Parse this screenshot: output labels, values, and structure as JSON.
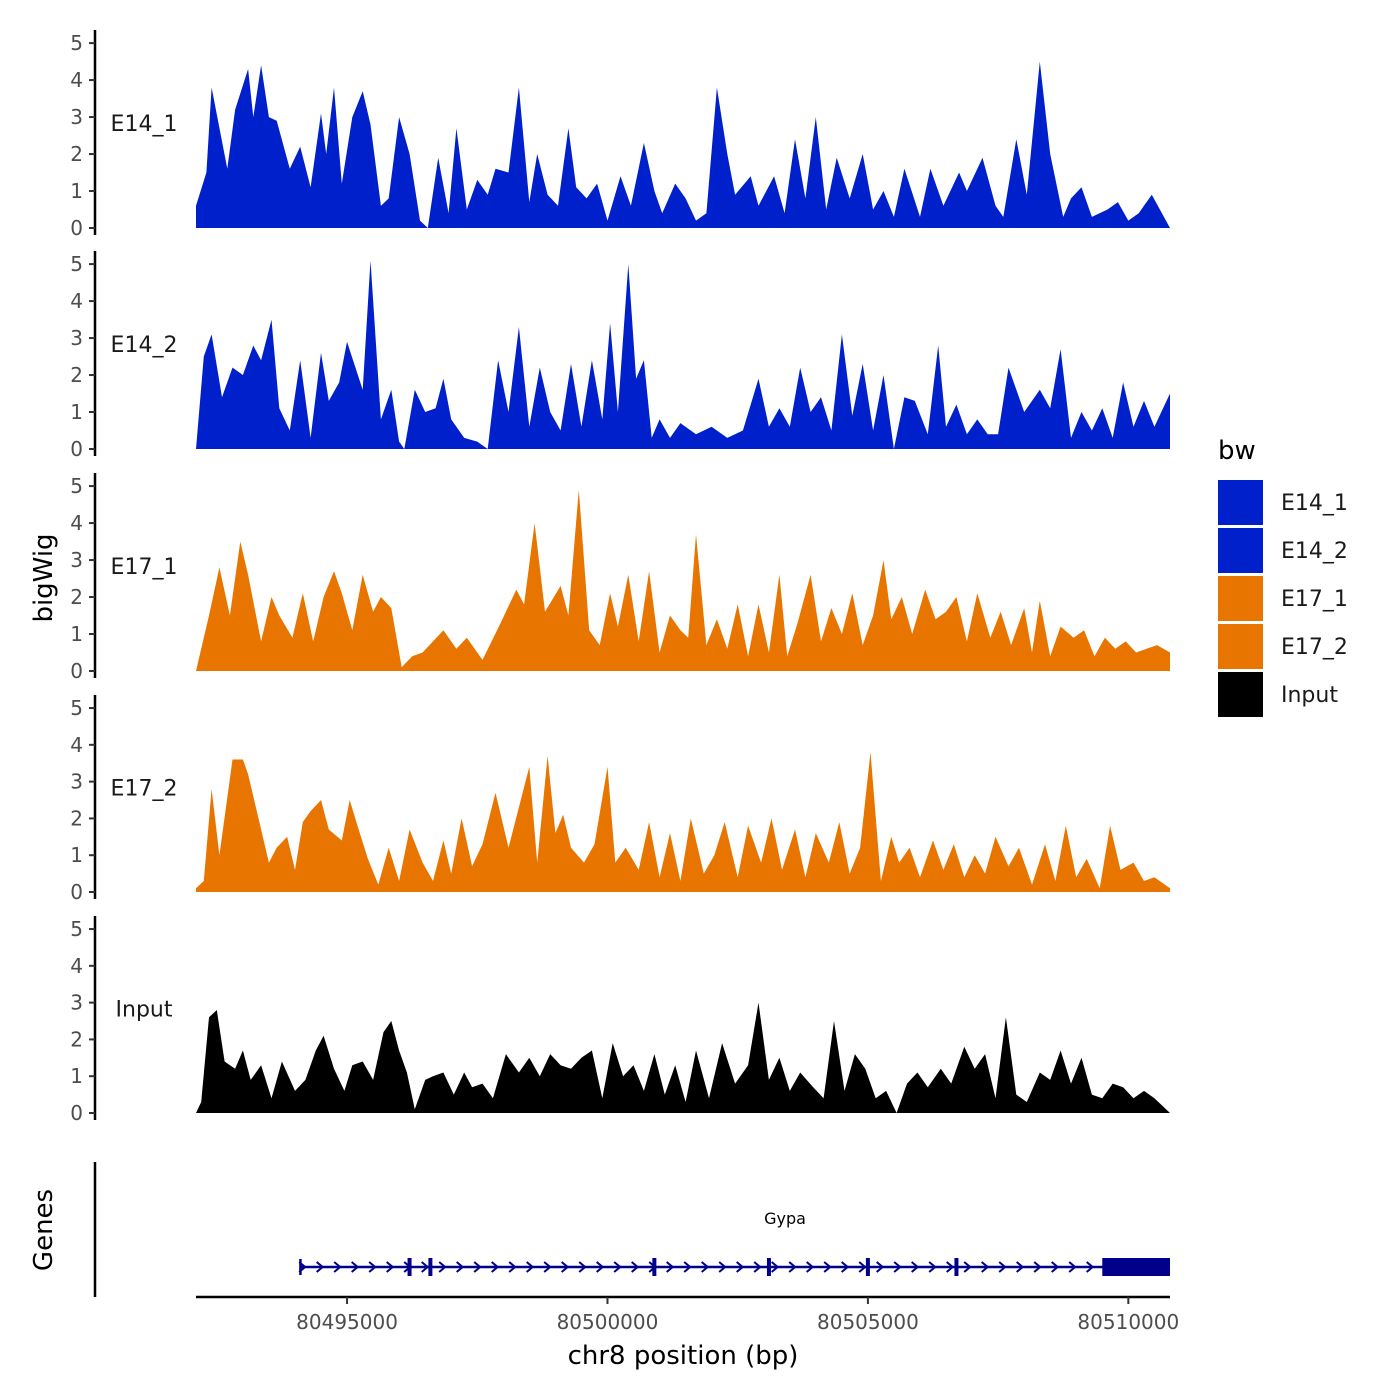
{
  "chart_data": {
    "type": "area",
    "ylabel": "bigWig",
    "gene_panel_label": "Genes",
    "xlabel": "chr8 position (bp)",
    "xlim": [
      80492100,
      80510800
    ],
    "x_ticks": [
      80495000,
      80500000,
      80505000,
      80510000
    ],
    "x_tick_labels": [
      "80495000",
      "80500000",
      "80505000",
      "80510000"
    ],
    "ylim": [
      0,
      5.3
    ],
    "y_ticks": [
      0,
      1,
      2,
      3,
      4,
      5
    ],
    "y_tick_labels": [
      "0",
      "1",
      "2",
      "3",
      "4",
      "5"
    ],
    "legend": {
      "title": "bw",
      "position": "right",
      "entries": [
        {
          "label": "E14_1",
          "color": "#0020CC"
        },
        {
          "label": "E14_2",
          "color": "#0020CC"
        },
        {
          "label": "E17_1",
          "color": "#E87500"
        },
        {
          "label": "E17_2",
          "color": "#E87500"
        },
        {
          "label": "Input",
          "color": "#000000"
        }
      ]
    },
    "series": [
      {
        "name": "E14_1",
        "color": "#0020CC",
        "x": [
          80492100,
          80492300,
          80492400,
          80492700,
          80492850,
          80493100,
          80493200,
          80493350,
          80493500,
          80493650,
          80493900,
          80494100,
          80494300,
          80494500,
          80494600,
          80494750,
          80494900,
          80495100,
          80495300,
          80495450,
          80495650,
          80495800,
          80496000,
          80496200,
          80496400,
          80496550,
          80496750,
          80496950,
          80497100,
          80497300,
          80497500,
          80497700,
          80497850,
          80498100,
          80498300,
          80498500,
          80498650,
          80498850,
          80499050,
          80499250,
          80499400,
          80499600,
          80499800,
          80500000,
          80500250,
          80500450,
          80500700,
          80500900,
          80501050,
          80501300,
          80501500,
          80501700,
          80501900,
          80502100,
          80502300,
          80502450,
          80502750,
          80502900,
          80503200,
          80503400,
          80503600,
          80503800,
          80504000,
          80504200,
          80504400,
          80504650,
          80504900,
          80505100,
          80505300,
          80505500,
          80505700,
          80506000,
          80506200,
          80506450,
          80506750,
          80506900,
          80507200,
          80507450,
          80507600,
          80507850,
          80508050,
          80508300,
          80508500,
          80508750,
          80508900,
          80509100,
          80509300,
          80509600,
          80509800,
          80510000,
          80510200,
          80510450,
          80510800
        ],
        "y": [
          0.6,
          1.5,
          3.8,
          1.6,
          3.2,
          4.3,
          3.0,
          4.4,
          3.0,
          2.9,
          1.6,
          2.2,
          1.1,
          3.1,
          2.0,
          3.8,
          1.2,
          3.0,
          3.7,
          2.8,
          0.6,
          0.8,
          3.0,
          2.0,
          0.2,
          0.0,
          1.9,
          0.4,
          2.7,
          0.5,
          1.3,
          0.9,
          1.6,
          1.5,
          3.8,
          0.7,
          2.0,
          0.9,
          0.6,
          2.7,
          1.1,
          0.8,
          1.2,
          0.2,
          1.4,
          0.6,
          2.3,
          1.0,
          0.4,
          1.2,
          0.8,
          0.2,
          0.4,
          3.8,
          2.0,
          0.9,
          1.4,
          0.6,
          1.4,
          0.4,
          2.4,
          0.8,
          3.0,
          0.5,
          1.9,
          0.8,
          2.0,
          0.5,
          1.0,
          0.3,
          1.6,
          0.3,
          1.6,
          0.6,
          1.5,
          1.0,
          1.9,
          0.6,
          0.3,
          2.4,
          0.9,
          4.5,
          2.0,
          0.3,
          0.8,
          1.1,
          0.3,
          0.5,
          0.7,
          0.2,
          0.4,
          0.9,
          0.0
        ]
      },
      {
        "name": "E14_2",
        "color": "#0020CC",
        "x": [
          80492100,
          80492250,
          80492400,
          80492600,
          80492800,
          80493000,
          80493200,
          80493350,
          80493550,
          80493700,
          80493900,
          80494100,
          80494300,
          80494500,
          80494650,
          80494850,
          80495000,
          80495300,
          80495450,
          80495650,
          80495850,
          80496000,
          80496100,
          80496300,
          80496500,
          80496700,
          80496850,
          80497000,
          80497250,
          80497500,
          80497700,
          80497900,
          80498100,
          80498300,
          80498500,
          80498700,
          80498900,
          80499100,
          80499300,
          80499500,
          80499700,
          80499900,
          80500050,
          80500200,
          80500400,
          80500550,
          80500700,
          80500850,
          80501000,
          80501200,
          80501400,
          80501700,
          80502000,
          80502300,
          80502600,
          80502900,
          80503100,
          80503300,
          80503500,
          80503700,
          80503900,
          80504100,
          80504300,
          80504500,
          80504700,
          80504900,
          80505100,
          80505300,
          80505500,
          80505700,
          80505900,
          80506150,
          80506350,
          80506500,
          80506700,
          80506900,
          80507100,
          80507300,
          80507500,
          80507700,
          80508000,
          80508300,
          80508500,
          80508700,
          80508900,
          80509100,
          80509300,
          80509500,
          80509700,
          80509900,
          80510100,
          80510300,
          80510500,
          80510800
        ],
        "y": [
          0.0,
          2.5,
          3.1,
          1.4,
          2.2,
          2.0,
          2.8,
          2.4,
          3.5,
          1.1,
          0.5,
          2.4,
          0.3,
          2.6,
          1.3,
          1.8,
          2.9,
          1.6,
          5.1,
          0.8,
          1.6,
          0.2,
          0.0,
          1.6,
          1.0,
          1.1,
          1.9,
          0.8,
          0.3,
          0.2,
          0.0,
          2.4,
          1.0,
          3.3,
          0.6,
          2.2,
          1.0,
          0.5,
          2.3,
          0.6,
          2.4,
          0.8,
          3.4,
          1.0,
          5.0,
          1.9,
          2.4,
          0.3,
          0.8,
          0.3,
          0.7,
          0.4,
          0.6,
          0.3,
          0.5,
          1.9,
          0.6,
          1.1,
          0.6,
          2.2,
          1.0,
          1.4,
          0.5,
          3.1,
          0.9,
          2.3,
          0.5,
          2.0,
          0.0,
          1.4,
          1.3,
          0.4,
          2.8,
          0.6,
          1.2,
          0.4,
          0.8,
          0.4,
          0.4,
          2.2,
          1.0,
          1.6,
          1.1,
          2.7,
          0.3,
          1.0,
          0.5,
          1.1,
          0.3,
          1.8,
          0.6,
          1.3,
          0.6,
          1.5
        ]
      },
      {
        "name": "E17_1",
        "color": "#E87500",
        "x": [
          80492100,
          80492350,
          80492550,
          80492750,
          80492950,
          80493100,
          80493350,
          80493550,
          80493700,
          80493950,
          80494150,
          80494350,
          80494550,
          80494750,
          80494900,
          80495100,
          80495300,
          80495500,
          80495650,
          80495850,
          80496050,
          80496250,
          80496450,
          80496650,
          80496850,
          80497100,
          80497300,
          80497600,
          80497950,
          80498250,
          80498400,
          80498600,
          80498800,
          80499100,
          80499250,
          80499450,
          80499650,
          80499850,
          80500050,
          80500200,
          80500400,
          80500600,
          80500800,
          80501000,
          80501200,
          80501400,
          80501550,
          80501700,
          80501900,
          80502100,
          80502300,
          80502500,
          80502700,
          80502900,
          80503100,
          80503300,
          80503450,
          80503650,
          80503900,
          80504100,
          80504300,
          80504500,
          80504700,
          80504900,
          80505100,
          80505300,
          80505450,
          80505650,
          80505850,
          80506100,
          80506300,
          80506500,
          80506700,
          80506900,
          80507100,
          80507350,
          80507550,
          80507750,
          80508000,
          80508150,
          80508300,
          80508500,
          80508700,
          80508950,
          80509150,
          80509350,
          80509550,
          80509750,
          80509950,
          80510150,
          80510350,
          80510550,
          80510800
        ],
        "y": [
          0.0,
          1.5,
          2.8,
          1.5,
          3.5,
          2.6,
          0.8,
          2.0,
          1.5,
          0.9,
          2.1,
          0.8,
          2.0,
          2.7,
          2.1,
          1.1,
          2.6,
          1.6,
          2.0,
          1.7,
          0.1,
          0.4,
          0.5,
          0.8,
          1.1,
          0.6,
          0.9,
          0.3,
          1.3,
          2.2,
          1.8,
          4.0,
          1.6,
          2.3,
          1.5,
          4.9,
          1.1,
          0.7,
          2.1,
          1.2,
          2.6,
          0.8,
          2.7,
          0.5,
          1.5,
          1.1,
          0.9,
          3.7,
          0.7,
          1.4,
          0.6,
          1.8,
          0.4,
          1.8,
          0.5,
          2.6,
          0.4,
          1.3,
          2.6,
          0.8,
          1.7,
          1.0,
          2.1,
          0.7,
          1.5,
          3.0,
          1.4,
          2.0,
          1.0,
          2.2,
          1.4,
          1.6,
          2.0,
          0.8,
          2.1,
          0.9,
          1.6,
          0.7,
          1.7,
          0.5,
          1.9,
          0.4,
          1.2,
          0.9,
          1.1,
          0.4,
          0.9,
          0.6,
          0.8,
          0.5,
          0.6,
          0.7,
          0.5
        ]
      },
      {
        "name": "E17_2",
        "color": "#E87500",
        "x": [
          80492100,
          80492250,
          80492400,
          80492550,
          80492800,
          80493000,
          80493100,
          80493300,
          80493500,
          80493650,
          80493850,
          80494000,
          80494150,
          80494300,
          80494500,
          80494650,
          80494900,
          80495050,
          80495200,
          80495400,
          80495600,
          80495800,
          80496000,
          80496200,
          80496450,
          80496650,
          80496850,
          80497000,
          80497200,
          80497400,
          80497600,
          80497850,
          80498100,
          80498300,
          80498500,
          80498650,
          80498850,
          80499000,
          80499150,
          80499300,
          80499550,
          80499750,
          80500000,
          80500150,
          80500350,
          80500600,
          80500800,
          80501000,
          80501200,
          80501400,
          80501600,
          80501850,
          80502050,
          80502250,
          80502500,
          80502700,
          80502950,
          80503150,
          80503350,
          80503600,
          80503800,
          80504000,
          80504250,
          80504450,
          80504650,
          80504850,
          80505050,
          80505250,
          80505450,
          80505600,
          80505800,
          80506000,
          80506250,
          80506450,
          80506650,
          80506850,
          80507050,
          80507250,
          80507450,
          80507700,
          80507900,
          80508150,
          80508400,
          80508600,
          80508800,
          80509000,
          80509200,
          80509450,
          80509650,
          80509850,
          80510100,
          80510300,
          80510500,
          80510800
        ],
        "y": [
          0.1,
          0.3,
          2.8,
          1.0,
          3.6,
          3.6,
          3.2,
          2.0,
          0.8,
          1.2,
          1.5,
          0.6,
          1.9,
          2.2,
          2.5,
          1.7,
          1.4,
          2.5,
          1.8,
          0.9,
          0.2,
          1.2,
          0.3,
          1.7,
          0.8,
          0.3,
          1.4,
          0.5,
          2.0,
          0.7,
          1.3,
          2.7,
          1.2,
          2.3,
          3.4,
          0.8,
          3.7,
          1.6,
          2.1,
          1.2,
          0.8,
          1.3,
          3.4,
          0.8,
          1.2,
          0.6,
          1.9,
          0.4,
          1.6,
          0.3,
          2.0,
          0.5,
          1.0,
          1.9,
          0.4,
          1.8,
          0.8,
          2.0,
          0.6,
          1.7,
          0.4,
          1.6,
          0.8,
          1.9,
          0.5,
          1.2,
          3.8,
          0.3,
          1.5,
          0.8,
          1.2,
          0.4,
          1.4,
          0.6,
          1.3,
          0.4,
          1.0,
          0.5,
          1.5,
          0.7,
          1.2,
          0.2,
          1.3,
          0.3,
          1.8,
          0.4,
          0.9,
          0.1,
          1.8,
          0.6,
          0.8,
          0.3,
          0.4,
          0.1
        ]
      },
      {
        "name": "Input",
        "color": "#000000",
        "x": [
          80492100,
          80492200,
          80492350,
          80492500,
          80492650,
          80492850,
          80493000,
          80493150,
          80493350,
          80493550,
          80493750,
          80494000,
          80494200,
          80494400,
          80494550,
          80494750,
          80494950,
          80495100,
          80495300,
          80495500,
          80495700,
          80495850,
          80496000,
          80496150,
          80496300,
          80496500,
          80496650,
          80496850,
          80497050,
          80497250,
          80497400,
          80497600,
          80497800,
          80498050,
          80498300,
          80498500,
          80498700,
          80498900,
          80499100,
          80499300,
          80499500,
          80499700,
          80499900,
          80500100,
          80500300,
          80500500,
          80500700,
          80500900,
          80501100,
          80501300,
          80501500,
          80501700,
          80501950,
          80502200,
          80502450,
          80502700,
          80502900,
          80503100,
          80503300,
          80503500,
          80503700,
          80503950,
          80504150,
          80504350,
          80504550,
          80504750,
          80504950,
          80505150,
          80505350,
          80505550,
          80505750,
          80505950,
          80506150,
          80506400,
          80506600,
          80506850,
          80507050,
          80507250,
          80507450,
          80507650,
          80507850,
          80508050,
          80508300,
          80508500,
          80508700,
          80508900,
          80509100,
          80509300,
          80509500,
          80509700,
          80509900,
          80510100,
          80510300,
          80510500,
          80510800
        ],
        "y": [
          0.0,
          0.3,
          2.6,
          2.8,
          1.4,
          1.2,
          1.7,
          0.9,
          1.3,
          0.4,
          1.4,
          0.6,
          0.9,
          1.7,
          2.1,
          1.2,
          0.6,
          1.3,
          1.4,
          0.9,
          2.2,
          2.5,
          1.7,
          1.1,
          0.1,
          0.9,
          1.0,
          1.1,
          0.5,
          1.1,
          0.7,
          0.8,
          0.4,
          1.6,
          1.1,
          1.5,
          1.0,
          1.6,
          1.3,
          1.2,
          1.5,
          1.7,
          0.4,
          1.9,
          1.0,
          1.3,
          0.6,
          1.6,
          0.5,
          1.3,
          0.3,
          1.7,
          0.4,
          1.9,
          0.8,
          1.3,
          3.0,
          0.9,
          1.5,
          0.6,
          1.1,
          0.7,
          0.4,
          2.5,
          0.6,
          1.6,
          1.2,
          0.4,
          0.6,
          0.0,
          0.8,
          1.1,
          0.7,
          1.2,
          0.8,
          1.8,
          1.2,
          1.6,
          0.4,
          2.6,
          0.5,
          0.3,
          1.1,
          0.9,
          1.7,
          0.8,
          1.5,
          0.5,
          0.4,
          0.8,
          0.7,
          0.4,
          0.6,
          0.4,
          0.0
        ]
      }
    ],
    "genes": [
      {
        "name": "Gypa",
        "strand": "+",
        "start": 80494100,
        "end": 80510800,
        "exons": [
          80496200,
          80496600,
          80500900,
          80503100,
          80505000,
          80506700
        ],
        "utr_start": 80509500,
        "utr_end": 80510800,
        "color": "#00008B"
      }
    ]
  }
}
